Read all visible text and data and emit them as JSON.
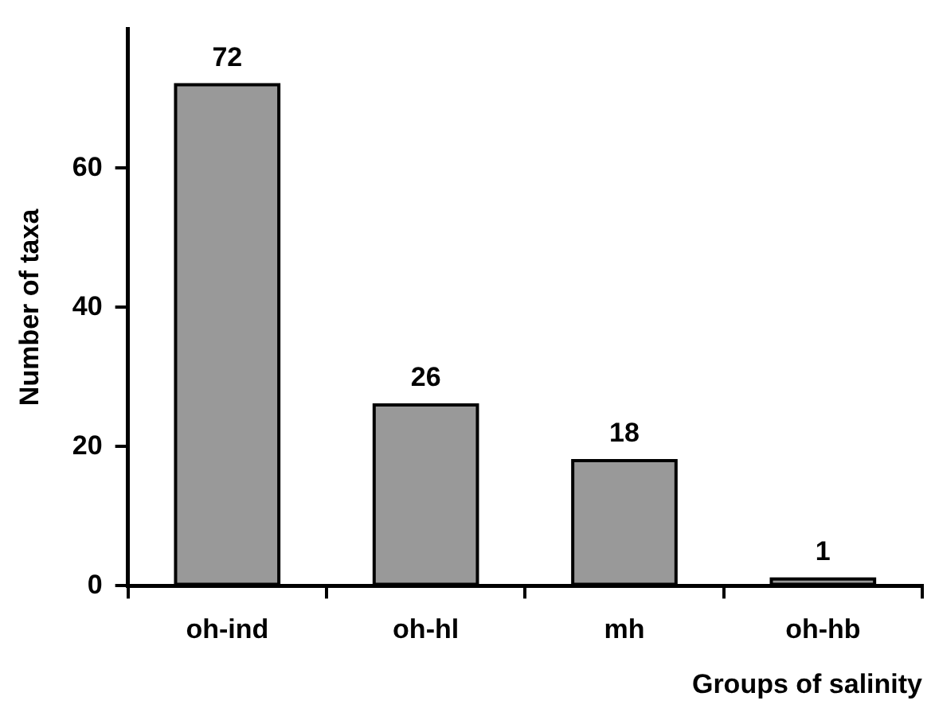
{
  "chart_data": {
    "type": "bar",
    "xlabel": "Groups of salinity",
    "ylabel": "Number of taxa",
    "categories": [
      "oh-ind",
      "oh-hl",
      "mh",
      "oh-hb"
    ],
    "values": [
      72,
      26,
      18,
      1
    ],
    "color": "#999999",
    "ylim": [
      0,
      80
    ],
    "yticks": [
      0,
      20,
      40,
      60
    ],
    "grid": false,
    "legend": false,
    "data_labels": true
  }
}
